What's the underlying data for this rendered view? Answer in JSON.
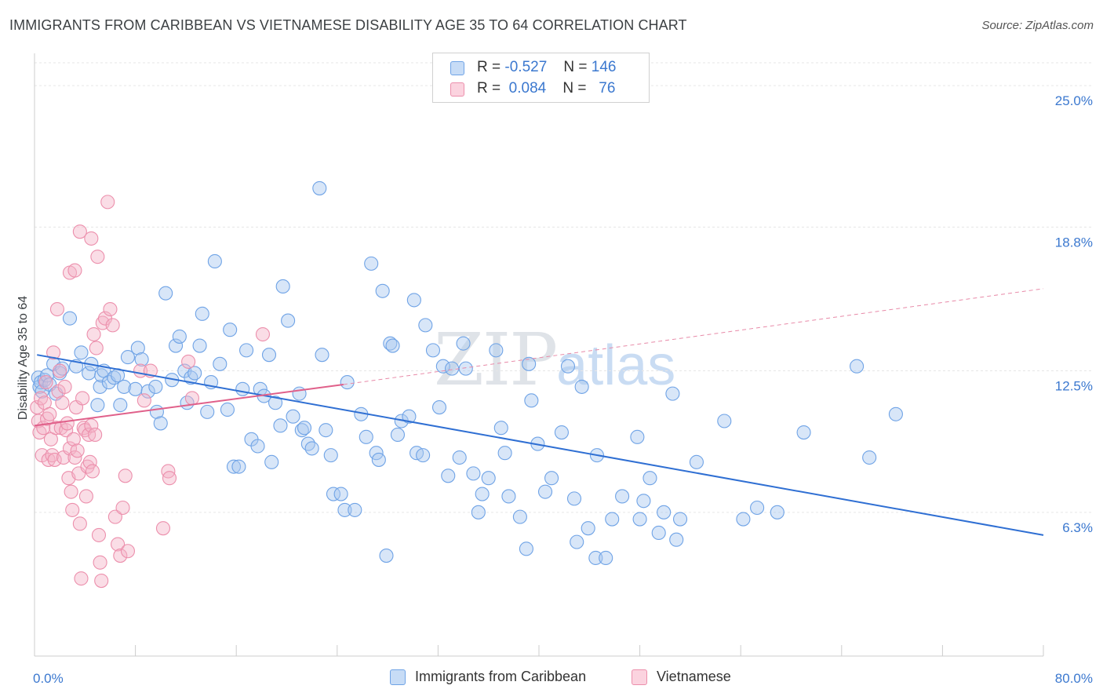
{
  "header": {
    "title": "IMMIGRANTS FROM CARIBBEAN VS VIETNAMESE DISABILITY AGE 35 TO 64 CORRELATION CHART",
    "source": "Source: ZipAtlas.com"
  },
  "watermark": {
    "zip": "ZIP",
    "atlas": "atlas"
  },
  "legend": {
    "rows": [
      {
        "r_label": "R =",
        "r_value": "-0.527",
        "n_label": "N =",
        "n_value": "146",
        "color": "#a9c8f0"
      },
      {
        "r_label": "R =",
        "r_value": "0.084",
        "n_label": "N =",
        "n_value": "76",
        "color": "#f5b4c8"
      }
    ]
  },
  "bottom_legend": {
    "items": [
      {
        "label": "Immigrants from Caribbean",
        "color": "#a9c8f0"
      },
      {
        "label": "Vietnamese",
        "color": "#f5b4c8"
      }
    ]
  },
  "chart_data": {
    "type": "scatter",
    "title": "IMMIGRANTS FROM CARIBBEAN VS VIETNAMESE DISABILITY AGE 35 TO 64 CORRELATION CHART",
    "ylabel": "Disability Age 35 to 64",
    "xlabel": "",
    "x_tick_labels": [
      "0.0%",
      "80.0%"
    ],
    "y_tick_labels": [
      "25.0%",
      "18.8%",
      "12.5%",
      "6.3%"
    ],
    "y_ticks": [
      25.0,
      18.8,
      12.5,
      6.3
    ],
    "xlim": [
      0,
      80
    ],
    "ylim": [
      0,
      26
    ],
    "grid": true,
    "legend_position": "top-center",
    "series": [
      {
        "name": "Immigrants from Caribbean",
        "color": "#6fa3e6",
        "fill": "#a9c8f0",
        "R": -0.527,
        "N": 146,
        "trend": {
          "x0": 0.2,
          "y0": 13.2,
          "x1": 80,
          "y1": 5.3
        },
        "points": [
          [
            0.3,
            12.2
          ],
          [
            0.4,
            11.8
          ],
          [
            0.5,
            12.0
          ],
          [
            0.6,
            11.6
          ],
          [
            0.8,
            12.1
          ],
          [
            1.0,
            12.3
          ],
          [
            1.2,
            11.9
          ],
          [
            1.5,
            12.8
          ],
          [
            1.7,
            11.5
          ],
          [
            2.0,
            12.4
          ],
          [
            2.2,
            12.6
          ],
          [
            2.8,
            14.8
          ],
          [
            3.3,
            12.7
          ],
          [
            3.7,
            13.3
          ],
          [
            4.3,
            12.4
          ],
          [
            4.5,
            12.8
          ],
          [
            5.0,
            11.0
          ],
          [
            5.2,
            11.8
          ],
          [
            5.3,
            12.3
          ],
          [
            5.5,
            12.5
          ],
          [
            5.9,
            12.0
          ],
          [
            6.3,
            12.2
          ],
          [
            6.6,
            12.3
          ],
          [
            6.8,
            11.0
          ],
          [
            7.1,
            11.8
          ],
          [
            7.4,
            13.1
          ],
          [
            8.0,
            11.7
          ],
          [
            8.2,
            13.5
          ],
          [
            8.5,
            13.0
          ],
          [
            9.0,
            11.6
          ],
          [
            9.6,
            11.8
          ],
          [
            9.7,
            10.7
          ],
          [
            10.0,
            10.2
          ],
          [
            10.4,
            15.9
          ],
          [
            10.9,
            12.1
          ],
          [
            11.2,
            13.6
          ],
          [
            11.5,
            14.0
          ],
          [
            11.9,
            12.5
          ],
          [
            12.1,
            11.1
          ],
          [
            12.4,
            12.2
          ],
          [
            12.7,
            12.4
          ],
          [
            13.1,
            13.6
          ],
          [
            13.3,
            15.0
          ],
          [
            13.7,
            10.7
          ],
          [
            14.0,
            12.0
          ],
          [
            14.3,
            17.3
          ],
          [
            14.7,
            12.8
          ],
          [
            15.3,
            10.8
          ],
          [
            15.5,
            14.3
          ],
          [
            15.8,
            8.3
          ],
          [
            16.2,
            8.3
          ],
          [
            16.5,
            11.7
          ],
          [
            16.8,
            13.4
          ],
          [
            17.2,
            9.5
          ],
          [
            17.7,
            9.2
          ],
          [
            17.9,
            11.7
          ],
          [
            18.2,
            11.4
          ],
          [
            18.6,
            13.2
          ],
          [
            18.8,
            8.5
          ],
          [
            19.1,
            11.1
          ],
          [
            19.5,
            10.1
          ],
          [
            19.7,
            16.2
          ],
          [
            20.1,
            14.7
          ],
          [
            20.5,
            10.5
          ],
          [
            21.0,
            11.5
          ],
          [
            21.2,
            9.9
          ],
          [
            21.4,
            10.0
          ],
          [
            21.7,
            9.3
          ],
          [
            22.0,
            9.1
          ],
          [
            22.6,
            20.5
          ],
          [
            22.8,
            13.2
          ],
          [
            23.1,
            9.9
          ],
          [
            23.5,
            8.8
          ],
          [
            23.7,
            7.1
          ],
          [
            24.3,
            7.1
          ],
          [
            24.6,
            6.4
          ],
          [
            24.8,
            12.0
          ],
          [
            25.4,
            6.4
          ],
          [
            25.9,
            10.6
          ],
          [
            26.3,
            9.6
          ],
          [
            26.7,
            17.2
          ],
          [
            27.1,
            8.9
          ],
          [
            27.3,
            8.6
          ],
          [
            27.6,
            16.0
          ],
          [
            27.9,
            4.4
          ],
          [
            28.2,
            13.7
          ],
          [
            28.4,
            13.6
          ],
          [
            28.8,
            9.7
          ],
          [
            29.1,
            10.3
          ],
          [
            29.7,
            10.5
          ],
          [
            30.1,
            15.6
          ],
          [
            30.3,
            8.9
          ],
          [
            30.8,
            8.8
          ],
          [
            31.0,
            14.5
          ],
          [
            31.6,
            13.4
          ],
          [
            32.1,
            10.9
          ],
          [
            32.4,
            12.7
          ],
          [
            32.8,
            7.9
          ],
          [
            33.1,
            12.6
          ],
          [
            33.7,
            8.7
          ],
          [
            34.0,
            13.7
          ],
          [
            34.2,
            12.6
          ],
          [
            34.8,
            8.0
          ],
          [
            35.2,
            6.3
          ],
          [
            35.5,
            7.1
          ],
          [
            36.0,
            7.8
          ],
          [
            36.6,
            13.4
          ],
          [
            37.0,
            10.0
          ],
          [
            37.3,
            8.9
          ],
          [
            37.6,
            7.0
          ],
          [
            38.5,
            6.1
          ],
          [
            39.0,
            4.7
          ],
          [
            39.2,
            12.8
          ],
          [
            39.4,
            11.2
          ],
          [
            39.9,
            9.3
          ],
          [
            40.5,
            7.2
          ],
          [
            41.0,
            7.8
          ],
          [
            41.8,
            9.8
          ],
          [
            42.3,
            12.7
          ],
          [
            42.8,
            6.9
          ],
          [
            43.0,
            5.0
          ],
          [
            43.4,
            11.8
          ],
          [
            43.9,
            5.6
          ],
          [
            44.5,
            4.3
          ],
          [
            44.6,
            8.8
          ],
          [
            45.3,
            4.3
          ],
          [
            45.8,
            6.0
          ],
          [
            46.6,
            7.0
          ],
          [
            47.8,
            9.6
          ],
          [
            48.0,
            6.0
          ],
          [
            48.3,
            6.8
          ],
          [
            48.8,
            7.8
          ],
          [
            49.5,
            5.4
          ],
          [
            49.9,
            6.3
          ],
          [
            50.6,
            11.5
          ],
          [
            50.9,
            5.1
          ],
          [
            51.2,
            6.0
          ],
          [
            52.5,
            8.5
          ],
          [
            54.7,
            10.3
          ],
          [
            56.2,
            6.0
          ],
          [
            57.3,
            6.5
          ],
          [
            58.9,
            6.3
          ],
          [
            61.0,
            9.8
          ],
          [
            65.2,
            12.7
          ],
          [
            66.2,
            8.7
          ],
          [
            68.3,
            10.6
          ]
        ]
      },
      {
        "name": "Vietnamese",
        "color": "#ec8fac",
        "fill": "#f5b4c8",
        "R": 0.084,
        "N": 76,
        "trend": {
          "x0": 0.0,
          "y0": 10.1,
          "x1": 24.5,
          "y1": 11.9
        },
        "trend_extension": {
          "x0": 24.5,
          "y0": 11.9,
          "x1": 80,
          "y1": 16.1
        },
        "points": [
          [
            0.2,
            10.9
          ],
          [
            0.3,
            10.3
          ],
          [
            0.4,
            9.8
          ],
          [
            0.5,
            11.3
          ],
          [
            0.6,
            8.8
          ],
          [
            0.7,
            10.0
          ],
          [
            0.8,
            11.1
          ],
          [
            0.9,
            12.0
          ],
          [
            1.0,
            10.4
          ],
          [
            1.1,
            8.6
          ],
          [
            1.2,
            10.6
          ],
          [
            1.3,
            9.5
          ],
          [
            1.4,
            8.8
          ],
          [
            1.5,
            13.3
          ],
          [
            1.6,
            8.6
          ],
          [
            1.7,
            10.0
          ],
          [
            1.8,
            15.2
          ],
          [
            1.9,
            11.6
          ],
          [
            2.0,
            12.5
          ],
          [
            2.1,
            10.0
          ],
          [
            2.2,
            11.1
          ],
          [
            2.3,
            8.7
          ],
          [
            2.4,
            11.8
          ],
          [
            2.5,
            9.9
          ],
          [
            2.6,
            10.2
          ],
          [
            2.7,
            7.8
          ],
          [
            2.8,
            9.1
          ],
          [
            2.9,
            7.2
          ],
          [
            3.0,
            6.4
          ],
          [
            3.1,
            9.5
          ],
          [
            3.2,
            8.7
          ],
          [
            3.3,
            10.9
          ],
          [
            3.4,
            9.0
          ],
          [
            3.5,
            8.0
          ],
          [
            3.6,
            5.8
          ],
          [
            3.7,
            3.4
          ],
          [
            3.8,
            11.3
          ],
          [
            3.9,
            10.0
          ],
          [
            4.0,
            9.9
          ],
          [
            4.1,
            7.0
          ],
          [
            4.2,
            8.3
          ],
          [
            4.3,
            9.7
          ],
          [
            4.4,
            8.5
          ],
          [
            4.5,
            10.1
          ],
          [
            4.6,
            8.1
          ],
          [
            4.7,
            14.1
          ],
          [
            4.8,
            9.7
          ],
          [
            4.9,
            13.5
          ],
          [
            5.0,
            17.5
          ],
          [
            5.1,
            5.3
          ],
          [
            5.2,
            4.1
          ],
          [
            5.3,
            3.3
          ],
          [
            5.4,
            14.6
          ],
          [
            5.6,
            14.8
          ],
          [
            5.8,
            19.9
          ],
          [
            6.0,
            15.2
          ],
          [
            6.2,
            14.5
          ],
          [
            6.4,
            6.1
          ],
          [
            6.6,
            4.9
          ],
          [
            6.8,
            4.4
          ],
          [
            7.0,
            6.5
          ],
          [
            7.2,
            7.9
          ],
          [
            7.4,
            4.6
          ],
          [
            3.6,
            18.6
          ],
          [
            4.5,
            18.3
          ],
          [
            2.8,
            16.8
          ],
          [
            3.2,
            16.9
          ],
          [
            8.4,
            12.5
          ],
          [
            8.7,
            11.2
          ],
          [
            9.2,
            12.5
          ],
          [
            10.2,
            5.6
          ],
          [
            10.6,
            8.1
          ],
          [
            10.7,
            7.8
          ],
          [
            12.2,
            12.9
          ],
          [
            12.5,
            11.3
          ],
          [
            18.1,
            14.1
          ]
        ]
      }
    ]
  }
}
